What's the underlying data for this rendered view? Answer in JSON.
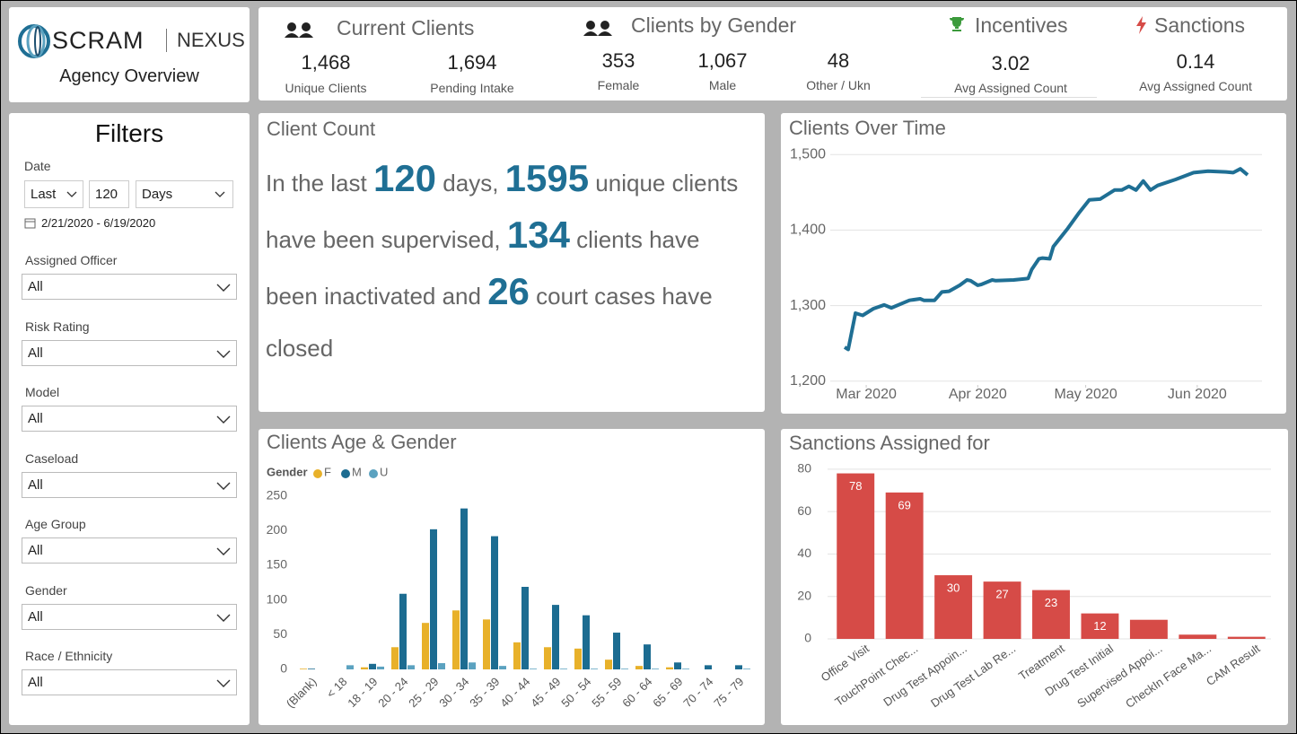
{
  "header": {
    "brand": "SCRAM",
    "product": "NEXUS",
    "subtitle": "Agency Overview"
  },
  "kpis": {
    "current_clients": {
      "title": "Current Clients",
      "items": [
        {
          "value": "1,468",
          "label": "Unique Clients"
        },
        {
          "value": "1,694",
          "label": "Pending Intake"
        }
      ]
    },
    "clients_by_gender": {
      "title": "Clients by Gender",
      "items": [
        {
          "value": "353",
          "label": "Female"
        },
        {
          "value": "1,067",
          "label": "Male"
        },
        {
          "value": "48",
          "label": "Other / Ukn"
        }
      ]
    },
    "incentives": {
      "title": "Incentives",
      "value": "3.02",
      "label": "Avg Assigned Count"
    },
    "sanctions": {
      "title": "Sanctions",
      "value": "0.14",
      "label": "Avg Assigned Count"
    }
  },
  "filters": {
    "title": "Filters",
    "date": {
      "label": "Date",
      "mode": "Last",
      "count": "120",
      "unit": "Days",
      "range": "2/21/2020 - 6/19/2020"
    },
    "dropdowns": [
      {
        "label": "Assigned Officer",
        "value": "All"
      },
      {
        "label": "Risk Rating",
        "value": "All"
      },
      {
        "label": "Model",
        "value": "All"
      },
      {
        "label": "Caseload",
        "value": "All"
      },
      {
        "label": "Age Group",
        "value": "All"
      },
      {
        "label": "Gender",
        "value": "All"
      },
      {
        "label": "Race / Ethnicity",
        "value": "All"
      }
    ]
  },
  "client_count": {
    "title": "Client Count",
    "segments": [
      {
        "text": "In the last "
      },
      {
        "text": "120",
        "emphasis": true
      },
      {
        "text": " days, "
      },
      {
        "text": "1595",
        "emphasis": true
      },
      {
        "text": " unique clients have been supervised, "
      },
      {
        "text": "134",
        "emphasis": true
      },
      {
        "text": " clients have been inactivated and "
      },
      {
        "text": "26",
        "emphasis": true
      },
      {
        "text": " court cases have closed"
      }
    ]
  },
  "chart_data": [
    {
      "type": "line",
      "title": "Clients Over Time",
      "color": "#1f6f94",
      "grid": true,
      "x": [
        3,
        4,
        6,
        8,
        11,
        14,
        16,
        21,
        24,
        25,
        28,
        30,
        32,
        35,
        37,
        38,
        40,
        41,
        44,
        45,
        50,
        54,
        55,
        57,
        58,
        60,
        61,
        65,
        68,
        71,
        74,
        78,
        80,
        82,
        84,
        86,
        88,
        90,
        95,
        100,
        104,
        109,
        111,
        113,
        115
      ],
      "values": [
        1245,
        1242,
        1290,
        1287,
        1296,
        1301,
        1297,
        1307,
        1309,
        1307,
        1307,
        1318,
        1319,
        1327,
        1334,
        1333,
        1327,
        1328,
        1334,
        1333,
        1334,
        1336,
        1348,
        1362,
        1363,
        1362,
        1378,
        1402,
        1422,
        1440,
        1441,
        1453,
        1453,
        1458,
        1453,
        1465,
        1453,
        1459,
        1467,
        1476,
        1478,
        1477,
        1476,
        1481,
        1473
      ],
      "xlim": [
        0,
        119
      ],
      "xticks": [
        {
          "value": 9,
          "label": "Mar 2020"
        },
        {
          "value": 40,
          "label": "Apr 2020"
        },
        {
          "value": 70,
          "label": "May 2020"
        },
        {
          "value": 101,
          "label": "Jun 2020"
        }
      ],
      "ylim": [
        1195,
        1505
      ],
      "yticks": [
        {
          "value": 1200,
          "label": "1,200"
        },
        {
          "value": 1300,
          "label": "1,300"
        },
        {
          "value": 1400,
          "label": "1,400"
        },
        {
          "value": 1500,
          "label": "1,500"
        }
      ]
    },
    {
      "type": "bar",
      "title": "Clients Age & Gender",
      "legend_title": "Gender",
      "grid": false,
      "categories": [
        "(Blank)",
        "< 18",
        "18 - 19",
        "20 - 24",
        "25 - 29",
        "30 - 34",
        "35 - 39",
        "40 - 44",
        "45 - 49",
        "50 - 54",
        "55 - 59",
        "60 - 64",
        "65 - 69",
        "70 - 74",
        "75 - 79"
      ],
      "series": [
        {
          "name": "F",
          "color": "#e8b12a",
          "values": [
            1,
            0,
            3,
            32,
            67,
            85,
            72,
            39,
            32,
            30,
            14,
            5,
            3,
            0,
            0
          ]
        },
        {
          "name": "M",
          "color": "#1c6c91",
          "values": [
            1,
            0,
            8,
            109,
            202,
            232,
            192,
            119,
            93,
            78,
            53,
            36,
            10,
            6,
            6
          ]
        },
        {
          "name": "U",
          "color": "#5ba2c0",
          "values": [
            0,
            6,
            4,
            6,
            9,
            10,
            5,
            1,
            1,
            1,
            1,
            1,
            1,
            0,
            1
          ]
        }
      ],
      "ylim": [
        0,
        260
      ],
      "yticks": [
        0,
        50,
        100,
        150,
        200,
        250
      ]
    },
    {
      "type": "bar",
      "title": "Sanctions Assigned for",
      "color": "#d64b47",
      "grid": true,
      "categories": [
        "Office Visit",
        "TouchPoint Chec...",
        "Drug Test Appoin...",
        "Drug Test Lab Re...",
        "Treatment",
        "Drug Test Initial",
        "Supervised Appoi...",
        "CheckIn Face Ma...",
        "CAM Result"
      ],
      "values": [
        78,
        69,
        30,
        27,
        23,
        12,
        9,
        2,
        1
      ],
      "ylim": [
        0,
        85
      ],
      "yticks": [
        0,
        20,
        40,
        60,
        80
      ]
    }
  ]
}
